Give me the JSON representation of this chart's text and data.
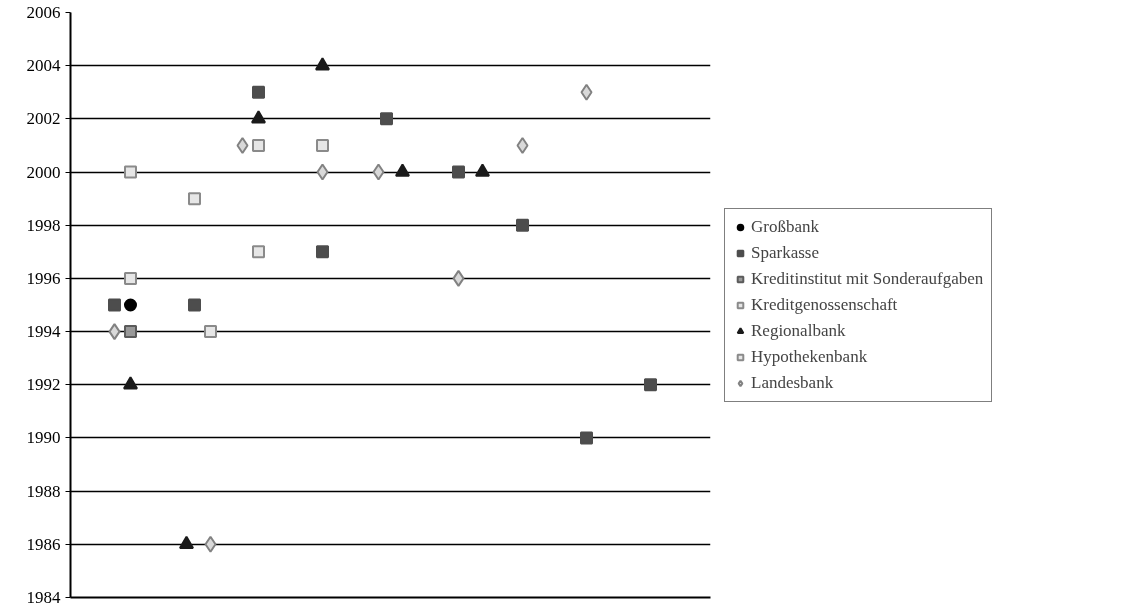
{
  "chart_data": {
    "type": "scatter",
    "categories": [
      null,
      null,
      null,
      null,
      null,
      null,
      null,
      null,
      null,
      null,
      null,
      null,
      null,
      null,
      null,
      null,
      null,
      null,
      null,
      null,
      null,
      null,
      null,
      null,
      null,
      null,
      null,
      null,
      null,
      null,
      null,
      null,
      null,
      null,
      null,
      null,
      null,
      null,
      null,
      null,
      null,
      null,
      null,
      null,
      null,
      null,
      null,
      null,
      null,
      null,
      null,
      null,
      null,
      null,
      null,
      null,
      null,
      null,
      null,
      null,
      null,
      null,
      null,
      null,
      null,
      null,
      null,
      null,
      null,
      null,
      null,
      null,
      null,
      null,
      null,
      null,
      null,
      null,
      null,
      null
    ],
    "ylim": [
      1984,
      2006
    ],
    "yticks": [
      1984,
      1986,
      1988,
      1990,
      1992,
      1994,
      1996,
      1998,
      2000,
      2002,
      2004,
      2006
    ],
    "grid": "y",
    "legend": "right",
    "tick_labels": "y",
    "series": [
      {
        "name": "Großbank",
        "color": "#000000",
        "marker": "circle",
        "values": [
          null,
          null,
          null,
          null,
          null,
          null,
          null,
          1995,
          null,
          null,
          null,
          null,
          null,
          null,
          null,
          null,
          null,
          null,
          null,
          null,
          null,
          null,
          null,
          null,
          null,
          null,
          null,
          null,
          null,
          null,
          null,
          null,
          null,
          null,
          null,
          null,
          null,
          null,
          null,
          null,
          null,
          null,
          null,
          null,
          null,
          null,
          null,
          null,
          null,
          null,
          null,
          null,
          null,
          null,
          null,
          null,
          null,
          null,
          null,
          null,
          null,
          null,
          null,
          null,
          null,
          null,
          null,
          null,
          null,
          null,
          null,
          null,
          null,
          null,
          null,
          null,
          null,
          null,
          null,
          null
        ]
      },
      {
        "name": "Sparkasse",
        "color": "#4d4d4d",
        "marker": "square",
        "values": [
          null,
          null,
          null,
          null,
          null,
          1995,
          null,
          null,
          null,
          null,
          null,
          null,
          null,
          null,
          null,
          1995,
          null,
          null,
          null,
          null,
          null,
          null,
          null,
          2003,
          null,
          null,
          null,
          null,
          null,
          null,
          null,
          1997,
          null,
          null,
          null,
          null,
          null,
          null,
          null,
          2002,
          null,
          null,
          null,
          null,
          null,
          null,
          null,
          null,
          2000,
          null,
          null,
          null,
          null,
          null,
          null,
          null,
          1998,
          null,
          null,
          null,
          null,
          null,
          null,
          null,
          1990,
          null,
          null,
          null,
          null,
          null,
          null,
          null,
          1992,
          null,
          null,
          null,
          null,
          null,
          null,
          null
        ]
      },
      {
        "name": "Kreditinstitut mit Sonderaufgaben",
        "color": "#999999",
        "marker": "square",
        "values": [
          null,
          null,
          null,
          null,
          null,
          null,
          null,
          1994,
          null,
          null,
          null,
          null,
          null,
          null,
          null,
          null,
          null,
          null,
          null,
          null,
          null,
          null,
          null,
          null,
          null,
          null,
          null,
          null,
          null,
          null,
          null,
          null,
          null,
          null,
          null,
          null,
          null,
          null,
          null,
          null,
          null,
          null,
          null,
          null,
          null,
          null,
          null,
          null,
          null,
          null,
          null,
          null,
          null,
          null,
          null,
          null,
          null,
          null,
          null,
          null,
          null,
          null,
          null,
          null,
          null,
          null,
          null,
          null,
          null,
          null,
          null,
          null,
          null,
          null,
          null,
          null,
          null,
          null,
          null,
          null
        ]
      },
      {
        "name": "Kreditgenossenschaft",
        "color": "#e6e6e6",
        "marker": "square",
        "values": [
          null,
          null,
          null,
          null,
          null,
          null,
          null,
          2000,
          null,
          null,
          null,
          null,
          null,
          null,
          null,
          null,
          null,
          1994,
          null,
          null,
          null,
          null,
          null,
          1997,
          null,
          null,
          null,
          null,
          null,
          null,
          null,
          2001,
          null,
          null,
          null,
          null,
          null,
          null,
          null,
          null,
          null,
          null,
          null,
          null,
          null,
          null,
          null,
          null,
          null,
          null,
          null,
          null,
          null,
          null,
          null,
          null,
          null,
          null,
          null,
          null,
          null,
          null,
          null,
          null,
          null,
          null,
          null,
          null,
          null,
          null,
          null,
          null,
          null,
          null,
          null,
          null,
          null,
          null,
          null,
          null
        ]
      },
      {
        "name": "Regionalbank",
        "color": "#1a1a1a",
        "marker": "triangle",
        "values": [
          null,
          null,
          null,
          null,
          null,
          null,
          null,
          1992,
          null,
          null,
          null,
          null,
          null,
          null,
          1986,
          null,
          null,
          null,
          null,
          null,
          null,
          null,
          null,
          2002,
          null,
          null,
          null,
          null,
          null,
          null,
          null,
          2004,
          null,
          null,
          null,
          null,
          null,
          null,
          null,
          null,
          null,
          2000,
          null,
          null,
          null,
          null,
          null,
          null,
          null,
          null,
          null,
          2000,
          null,
          null,
          null,
          null,
          null,
          null,
          null,
          null,
          null,
          null,
          null,
          null,
          null,
          null,
          null,
          null,
          null,
          null,
          null,
          null,
          null,
          null,
          null,
          null,
          null,
          null,
          null,
          null
        ]
      },
      {
        "name": "Hypothekenbank",
        "color": "#e6e6e6",
        "marker": "square",
        "values": [
          null,
          null,
          null,
          null,
          null,
          null,
          null,
          1996,
          null,
          null,
          null,
          null,
          null,
          null,
          null,
          1999,
          null,
          null,
          null,
          null,
          null,
          null,
          null,
          2001,
          null,
          null,
          null,
          null,
          null,
          null,
          null,
          null,
          null,
          null,
          null,
          null,
          null,
          null,
          null,
          null,
          null,
          null,
          null,
          null,
          null,
          null,
          null,
          null,
          null,
          null,
          null,
          null,
          null,
          null,
          null,
          null,
          null,
          null,
          null,
          null,
          null,
          null,
          null,
          null,
          null,
          null,
          null,
          null,
          null,
          null,
          null,
          null,
          null,
          null,
          null,
          null,
          null,
          null,
          null,
          null
        ]
      },
      {
        "name": "Landesbank",
        "color": "#d9d9d9",
        "marker": "diamond",
        "values": [
          null,
          null,
          null,
          null,
          null,
          1994,
          null,
          null,
          null,
          null,
          null,
          null,
          null,
          null,
          null,
          null,
          null,
          1986,
          null,
          null,
          null,
          2001,
          null,
          null,
          null,
          null,
          null,
          null,
          null,
          null,
          null,
          2000,
          null,
          null,
          null,
          null,
          null,
          null,
          2000,
          null,
          null,
          null,
          null,
          null,
          null,
          null,
          null,
          null,
          1996,
          null,
          null,
          null,
          null,
          null,
          null,
          null,
          2001,
          null,
          null,
          null,
          null,
          null,
          null,
          null,
          2003,
          null,
          null,
          null,
          null,
          null,
          null,
          null,
          null,
          null,
          null,
          null,
          null,
          null,
          null,
          null
        ]
      }
    ]
  }
}
